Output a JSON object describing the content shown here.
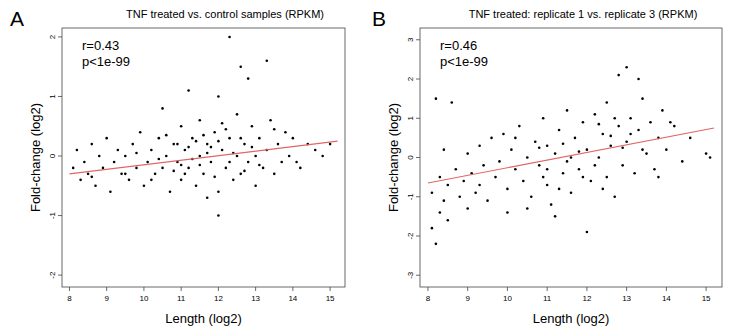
{
  "chart_data": [
    {
      "type": "scatter",
      "panel_label": "A",
      "title": "TNF treated vs. control samples (RPKM)",
      "x_label": "Length (log2)",
      "y_label": "Fold-change (log2)",
      "annotations": [
        "r=0.43",
        "p<1e-99"
      ],
      "xlim": [
        7.8,
        15.4
      ],
      "ylim": [
        -2.2,
        2.15
      ],
      "xticks": [
        8,
        9,
        10,
        11,
        12,
        13,
        14,
        15
      ],
      "yticks": [
        -2,
        -1,
        0,
        1,
        2
      ],
      "series": [
        {
          "type": "scatter",
          "color": "#000000",
          "marker": "circle",
          "x": [
            8.1,
            8.2,
            8.3,
            8.4,
            8.5,
            8.6,
            8.7,
            8.8,
            8.9,
            9.0,
            9.1,
            9.2,
            9.3,
            9.4,
            9.5,
            9.6,
            9.7,
            9.8,
            9.9,
            10.0,
            10.1,
            10.2,
            10.3,
            10.4,
            10.5,
            10.6,
            10.7,
            10.8,
            10.9,
            11.0,
            11.0,
            11.1,
            11.2,
            11.3,
            11.4,
            11.5,
            11.5,
            11.6,
            11.7,
            11.8,
            11.9,
            12.0,
            12.0,
            12.1,
            12.2,
            12.3,
            12.4,
            12.5,
            12.5,
            12.6,
            12.6,
            12.7,
            12.8,
            12.9,
            13.0,
            13.0,
            13.1,
            13.2,
            13.3,
            13.3,
            13.4,
            13.5,
            13.6,
            13.7,
            13.8,
            13.9,
            14.0,
            14.2,
            14.4,
            14.6,
            14.8,
            15.0,
            12.3,
            12.0,
            10.5,
            11.2,
            12.8,
            11.7,
            10.2,
            11.4,
            11.8,
            12.2,
            11.0,
            10.8,
            12.4,
            11.6,
            11.3,
            12.7,
            11.9,
            10.6,
            9.8,
            12.1,
            11.1,
            11.5,
            12.6,
            13.1,
            10.4,
            11.7,
            11.2,
            12.9,
            10.9,
            12.3,
            13.5,
            9.5,
            14.1,
            8.6,
            12.0
          ],
          "values": [
            -0.2,
            0.1,
            -0.4,
            -0.1,
            -0.3,
            0.2,
            -0.5,
            0.0,
            -0.2,
            0.3,
            -0.6,
            -0.1,
            0.1,
            -0.3,
            0.0,
            -0.4,
            0.2,
            -0.2,
            0.4,
            -0.5,
            -0.1,
            0.1,
            -0.3,
            0.3,
            -0.2,
            0.0,
            -0.6,
            0.2,
            -0.1,
            0.5,
            -0.4,
            0.1,
            -0.2,
            0.3,
            -0.5,
            0.0,
            0.6,
            -0.3,
            0.2,
            -0.1,
            0.4,
            -0.6,
            1.0,
            0.1,
            -0.2,
            0.3,
            -0.4,
            0.7,
            0.0,
            1.5,
            -0.3,
            0.2,
            -0.1,
            0.5,
            0.0,
            -0.5,
            0.3,
            -0.2,
            1.6,
            0.1,
            0.6,
            -0.3,
            0.2,
            -0.1,
            0.4,
            0.0,
            0.3,
            -0.2,
            0.2,
            0.1,
            0.0,
            0.2,
            2.0,
            -1.0,
            0.8,
            1.1,
            1.3,
            -0.7,
            -0.4,
            0.25,
            0.15,
            0.45,
            -0.15,
            -0.25,
            0.05,
            0.35,
            -0.05,
            -0.25,
            -0.35,
            0.35,
            0.05,
            0.55,
            -0.3,
            -0.15,
            0.3,
            -0.15,
            -0.05,
            0.05,
            0.15,
            0.15,
            0.2,
            -0.1,
            0.45,
            -0.3,
            -0.1,
            -0.35,
            0.25
          ]
        },
        {
          "type": "line",
          "color": "#e06666",
          "x": [
            8.0,
            15.2
          ],
          "values": [
            -0.3,
            0.25
          ]
        }
      ]
    },
    {
      "type": "scatter",
      "panel_label": "B",
      "title": "TNF treated: replicate 1 vs. replicate 3 (RPKM)",
      "x_label": "Length (log2)",
      "y_label": "Fold-change (log2)",
      "annotations": [
        "r=0.46",
        "p<1e-99"
      ],
      "xlim": [
        7.8,
        15.4
      ],
      "ylim": [
        -3.3,
        3.3
      ],
      "xticks": [
        8,
        9,
        10,
        11,
        12,
        13,
        14,
        15
      ],
      "yticks": [
        -3,
        -2,
        -1,
        0,
        1,
        2,
        3
      ],
      "series": [
        {
          "type": "scatter",
          "color": "#000000",
          "marker": "circle",
          "x": [
            8.1,
            8.1,
            8.2,
            8.2,
            8.3,
            8.3,
            8.4,
            8.4,
            8.5,
            8.5,
            8.6,
            8.7,
            8.8,
            8.9,
            9.0,
            9.0,
            9.1,
            9.2,
            9.3,
            9.4,
            9.5,
            9.6,
            9.7,
            9.8,
            9.9,
            10.0,
            10.0,
            10.1,
            10.2,
            10.3,
            10.4,
            10.5,
            10.6,
            10.7,
            10.8,
            10.9,
            11.0,
            11.0,
            11.1,
            11.2,
            11.3,
            11.4,
            11.5,
            11.5,
            11.6,
            11.7,
            11.8,
            11.9,
            12.0,
            12.0,
            12.1,
            12.2,
            12.3,
            12.4,
            12.5,
            12.5,
            12.6,
            12.7,
            12.8,
            12.9,
            13.0,
            13.0,
            13.1,
            13.2,
            13.3,
            13.4,
            13.5,
            13.6,
            13.7,
            13.8,
            13.9,
            14.0,
            14.2,
            14.4,
            14.6,
            15.0,
            15.1,
            12.8,
            13.3,
            11.2,
            10.5,
            11.8,
            12.2,
            11.4,
            12.6,
            10.8,
            11.6,
            12.9,
            11.0,
            13.4,
            12.4,
            10.2,
            9.3,
            11.9,
            12.7,
            13.8,
            10.9,
            12.3,
            11.3,
            13.1,
            14.1
          ],
          "values": [
            -1.8,
            -0.9,
            -2.2,
            1.5,
            -1.4,
            -0.5,
            -1.1,
            0.2,
            -1.6,
            -0.7,
            1.4,
            -0.3,
            -1.0,
            -0.6,
            0.1,
            -1.3,
            -0.4,
            -0.9,
            0.3,
            -0.2,
            -1.1,
            0.5,
            -0.5,
            -0.1,
            0.6,
            -0.8,
            -1.4,
            0.2,
            -0.3,
            0.8,
            -0.6,
            0.0,
            -1.0,
            0.4,
            -0.2,
            1.0,
            -0.7,
            0.3,
            -1.2,
            0.1,
            0.7,
            -0.4,
            1.2,
            -0.1,
            -0.9,
            0.5,
            -0.3,
            0.9,
            -1.9,
            0.2,
            -0.6,
            1.1,
            0.0,
            0.6,
            -0.5,
            1.4,
            0.3,
            -1.0,
            0.8,
            -0.2,
            2.3,
            0.4,
            1.0,
            -0.4,
            0.7,
            1.5,
            0.1,
            0.9,
            -0.3,
            0.5,
            1.2,
            0.2,
            0.8,
            -0.1,
            0.5,
            0.1,
            0.0,
            2.1,
            2.0,
            -1.5,
            -1.3,
            0.15,
            -0.2,
            0.35,
            0.55,
            0.25,
            0.0,
            0.25,
            -0.3,
            0.2,
            -0.8,
            0.5,
            -0.7,
            -0.5,
            1.0,
            -0.5,
            -0.5,
            0.85,
            -0.8,
            0.6,
            0.9
          ]
        },
        {
          "type": "line",
          "color": "#e06666",
          "x": [
            8.0,
            15.2
          ],
          "values": [
            -0.65,
            0.75
          ]
        }
      ]
    }
  ]
}
